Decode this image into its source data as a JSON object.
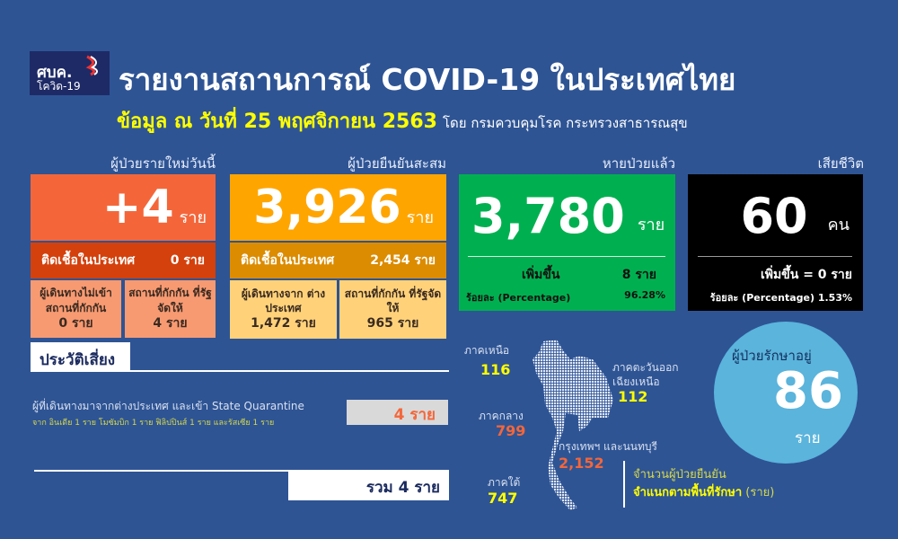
{
  "header": {
    "logo_text": "ศบค.",
    "logo_sub": "โควิด-19",
    "title": "รายงานสถานการณ์ COVID-19 ในประเทศไทย",
    "date_line": "ข้อมูล ณ วันที่ 25 พฤศจิกายน 2563",
    "source": "โดย กรมควบคุมโรค กระทรวงสาธารณสุข"
  },
  "new_cases": {
    "label": "ผู้ป่วยรายใหม่วันนี้",
    "value": "+4",
    "unit": "ราย",
    "local_label": "ติดเชื้อในประเทศ",
    "local_value": "0 ราย",
    "sub1_label": "ผู้เดินทางไม่เข้า สถานที่กักกัน",
    "sub1_value": "0 ราย",
    "sub2_label": "สถานที่กักกัน ที่รัฐจัดให้",
    "sub2_value": "4 ราย"
  },
  "cumulative": {
    "label": "ผู้ป่วยยืนยันสะสม",
    "value": "3,926",
    "unit": "ราย",
    "local_label": "ติดเชื้อในประเทศ",
    "local_value": "2,454 ราย",
    "sub1_label": "ผู้เดินทางจาก ต่างประเทศ",
    "sub1_value": "1,472 ราย",
    "sub2_label": "สถานที่กักกัน ที่รัฐจัดให้",
    "sub2_value": "965 ราย"
  },
  "recovered": {
    "label": "หายป่วยแล้ว",
    "value": "3,780",
    "unit": "ราย",
    "increase_label": "เพิ่มขึ้น",
    "increase_value": "8 ราย",
    "pct_label": "ร้อยละ (Percentage)",
    "pct_value": "96.28%"
  },
  "deaths": {
    "label": "เสียชีวิต",
    "value": "60",
    "unit": "คน",
    "increase": "เพิ่มขึ้น = 0 ราย",
    "pct": "ร้อยละ (Percentage) 1.53%"
  },
  "risk": {
    "heading": "ประวัติเสี่ยง",
    "line1": "ผู้ที่เดินทางมาจากต่างประเทศ และเข้า State Quarantine",
    "line2": "จาก อินเดีย 1 ราย โมซัมบิก 1 ราย ฟิลิปปินส์ 1 ราย และรัสเซีย 1 ราย",
    "value": "4 ราย",
    "total": "รวม 4 ราย"
  },
  "regions": {
    "north_label": "ภาคเหนือ",
    "north": "116",
    "northeast_label1": "ภาคตะวันออก",
    "northeast_label2": "เฉียงเหนือ",
    "northeast": "112",
    "central_label": "ภาคกลาง",
    "central": "799",
    "bkk_label": "กรุงเทพฯ และนนทบุรี",
    "bkk": "2,152",
    "south_label": "ภาคใต้",
    "south": "747",
    "caption1": "จำนวนผู้ป่วยยืนยัน",
    "caption2": "จำแนกตามพื้นที่รักษา",
    "caption_unit": "(ราย)"
  },
  "treating": {
    "label": "ผู้ป่วยรักษาอยู่",
    "value": "86",
    "unit": "ราย"
  },
  "colors": {
    "background": "#2e5494",
    "orange": "#f4663a",
    "amber": "#ffa500",
    "green": "#00b050",
    "circle": "#5ab4dc"
  }
}
